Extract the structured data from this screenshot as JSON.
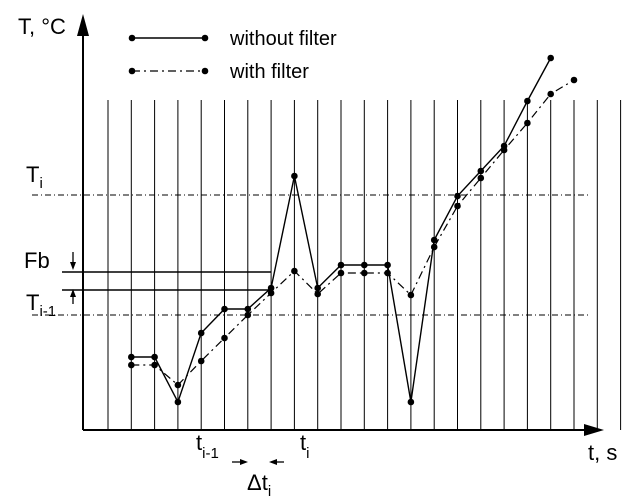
{
  "chart_data": {
    "type": "line",
    "ylabel": "T, °C",
    "xlabel": "t, s",
    "grid": true,
    "legend_position": "top-center",
    "legend": [
      {
        "name": "without filter",
        "style": "solid"
      },
      {
        "name": "with filter",
        "style": "dash-dot"
      }
    ],
    "annotations": {
      "Ti": {
        "base": "T",
        "sub": "i"
      },
      "Fb": "Fb",
      "Ti1": {
        "base": "T",
        "sub": "i-1"
      },
      "ti1": {
        "base": "t",
        "sub": "i-1"
      },
      "ti": {
        "base": "t",
        "sub": "i"
      },
      "dti": {
        "base": "Δt",
        "sub": "i"
      }
    },
    "grid_x_count": 24,
    "series": [
      {
        "name": "without filter",
        "points": [
          [
            1,
            73
          ],
          [
            2,
            73
          ],
          [
            3,
            28
          ],
          [
            4,
            97
          ],
          [
            5,
            121
          ],
          [
            6,
            121
          ],
          [
            7,
            142
          ],
          [
            8,
            254
          ],
          [
            9,
            142
          ],
          [
            10,
            165
          ],
          [
            11,
            165
          ],
          [
            12,
            165
          ],
          [
            13,
            28
          ],
          [
            14,
            190
          ],
          [
            15,
            234
          ],
          [
            16,
            259
          ],
          [
            17,
            284
          ],
          [
            18,
            329
          ],
          [
            19,
            372
          ]
        ]
      },
      {
        "name": "with filter",
        "points": [
          [
            1,
            65
          ],
          [
            2,
            65
          ],
          [
            3,
            45
          ],
          [
            4,
            69
          ],
          [
            5,
            92
          ],
          [
            6,
            115
          ],
          [
            7,
            137
          ],
          [
            8,
            159
          ],
          [
            9,
            136
          ],
          [
            10,
            157
          ],
          [
            11,
            157
          ],
          [
            12,
            157
          ],
          [
            13,
            135
          ],
          [
            14,
            183
          ],
          [
            15,
            224
          ],
          [
            16,
            252
          ],
          [
            17,
            280
          ],
          [
            18,
            307
          ],
          [
            19,
            336
          ],
          [
            20,
            350
          ]
        ]
      }
    ],
    "reference_levels": {
      "Ti": 235,
      "Ti1": 115,
      "Fb_upper": 158,
      "Fb_lower": 140
    }
  }
}
